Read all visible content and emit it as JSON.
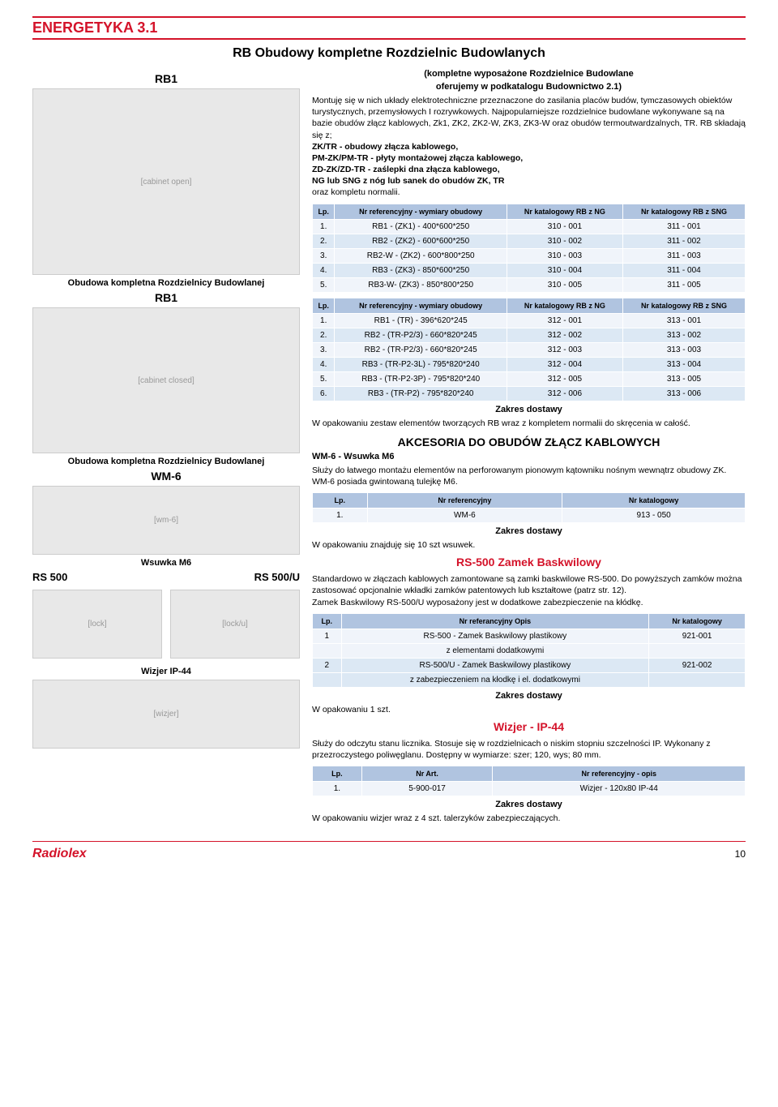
{
  "header": "ENERGETYKA 3.1",
  "title": "RB  Obudowy kompletne Rozdzielnic Budowlanych",
  "left": {
    "rb1": "RB1",
    "caption1": "Obudowa kompletna Rozdzielnicy Budowlanej",
    "caption2": "Obudowa kompletna Rozdzielnicy Budowlanej",
    "wm6": "WM-6",
    "wm6c": "Wsuwka M6",
    "rs500": "RS 500",
    "rs500u": "RS 500/U",
    "wizjer": "Wizjer IP-44"
  },
  "intro": {
    "sub1": "(kompletne wyposażone Rozdzielnice Budowlane",
    "sub2": "oferujemy w podkatalogu Budownictwo 2.1)",
    "p1": "Montuję się w nich układy elektrotechniczne przeznaczone do zasilania placów budów, tymczasowych obiektów turystycznych, przemysłowych I rozrywkowych. Najpopularniejsze rozdzielnice budowlane wykonywane są na bazie obudów złącz kablowych,  Zk1, ZK2, ZK2-W, ZK3, ZK3-W oraz obudów termoutwardzalnych, TR. RB składają się z;",
    "b1": "ZK/TR -  obudowy złącza kablowego,",
    "b2": "PM-ZK/PM-TR - płyty montażowej złącza kablowego,",
    "b3": "ZD-ZK/ZD-TR -  zaślepki dna złącza kablowego,",
    "b4": "NG lub SNG  z nóg lub sanek do obudów ZK, TR",
    "b5": "oraz kompletu normalii."
  },
  "thdr": {
    "lp": "Lp.",
    "ref": "Nr referencyjny - wymiary obudowy",
    "ng": "Nr katalogowy RB z NG",
    "sng": "Nr katalogowy RB z SNG"
  },
  "t1": [
    [
      "1.",
      "RB1 - (ZK1) - 400*600*250",
      "310 - 001",
      "311 - 001"
    ],
    [
      "2.",
      "RB2 - (ZK2) - 600*600*250",
      "310 - 002",
      "311 - 002"
    ],
    [
      "3.",
      "RB2-W - (ZK2) - 600*800*250",
      "310 - 003",
      "311 - 003"
    ],
    [
      "4.",
      "RB3 - (ZK3) - 850*600*250",
      "310 - 004",
      "311 - 004"
    ],
    [
      "5.",
      "RB3-W- (ZK3) - 850*800*250",
      "310 - 005",
      "311 - 005"
    ]
  ],
  "t2": [
    [
      "1.",
      "RB1 - (TR) - 396*620*245",
      "312 - 001",
      "313 - 001"
    ],
    [
      "2.",
      "RB2 - (TR-P2/3) - 660*820*245",
      "312 - 002",
      "313 - 002"
    ],
    [
      "3.",
      "RB2 - (TR-P2/3) - 660*820*245",
      "312 - 003",
      "313 - 003"
    ],
    [
      "4.",
      "RB3 - (TR-P2-3L) - 795*820*240",
      "312 - 004",
      "313 - 004"
    ],
    [
      "5.",
      "RB3 - (TR-P2-3P) - 795*820*240",
      "312 - 005",
      "313 - 005"
    ],
    [
      "6.",
      "RB3 - (TR-P2) - 795*820*240",
      "312 - 006",
      "313 - 006"
    ]
  ],
  "zd": "Zakres dostawy",
  "zd1": "W opakowaniu zestaw elementów tworzących RB wraz z kompletem normalii do skręcenia w całość.",
  "acc_title": "AKCESORIA DO OBUDÓW ZŁĄCZ KABLOWYCH",
  "wm6": {
    "h": "WM-6 - Wsuwka M6",
    "d": "Służy do łatwego montażu elementów na perforowanym pionowym kątowniku nośnym wewnątrz obudowy ZK. WM-6 posiada gwintowaną tulejkę M6.",
    "thdr": [
      "Lp.",
      "Nr referencyjny",
      "Nr katalogowy"
    ],
    "row": [
      "1.",
      "WM-6",
      "913 - 050"
    ],
    "zd": "W opakowaniu znajduję się 10 szt wsuwek."
  },
  "rs": {
    "h": "RS-500 Zamek Baskwilowy",
    "d": "Standardowo w złączach kablowych zamontowane są zamki baskwilowe RS-500. Do powyższych zamków można zastosować opcjonalnie wkładki zamków patentowych lub kształtowe (patrz str. 12).\nZamek Baskwilowy RS-500/U wyposażony jest w dodatkowe zabezpieczenie na kłódkę.",
    "thdr": [
      "Lp.",
      "Nr referancyjny Opis",
      "Nr katalogowy"
    ],
    "r1": [
      "1",
      "RS-500 - Zamek Baskwilowy plastikowy",
      "921-001"
    ],
    "r1b": "z elementami dodatkowymi",
    "r2": [
      "2",
      "RS-500/U - Zamek Baskwilowy plastikowy",
      "921-002"
    ],
    "r2b": "z zabezpieczeniem na kłodkę i el. dodatkowymi",
    "zd": "W opakowaniu 1 szt."
  },
  "wiz": {
    "h": "Wizjer - IP-44",
    "d": "Służy do odczytu stanu licznika. Stosuje się w rozdzielnicach o niskim stopniu szczelności IP. Wykonany z przezroczystego poliwęglanu. Dostępny w wymiarze: szer; 120, wys; 80 mm.",
    "thdr": [
      "Lp.",
      "Nr Art.",
      "Nr referencyjny - opis"
    ],
    "row": [
      "1.",
      "5-900-017",
      "Wizjer - 120x80 IP-44"
    ],
    "zd": "W opakowaniu wizjer wraz z 4 szt. talerzyków zabezpieczających."
  },
  "footer": {
    "logo": "Radiolex",
    "pg": "10"
  },
  "colors": {
    "red": "#d4132a",
    "th": "#b0c4e0",
    "odd": "#f0f4fa",
    "even": "#dce8f4"
  }
}
